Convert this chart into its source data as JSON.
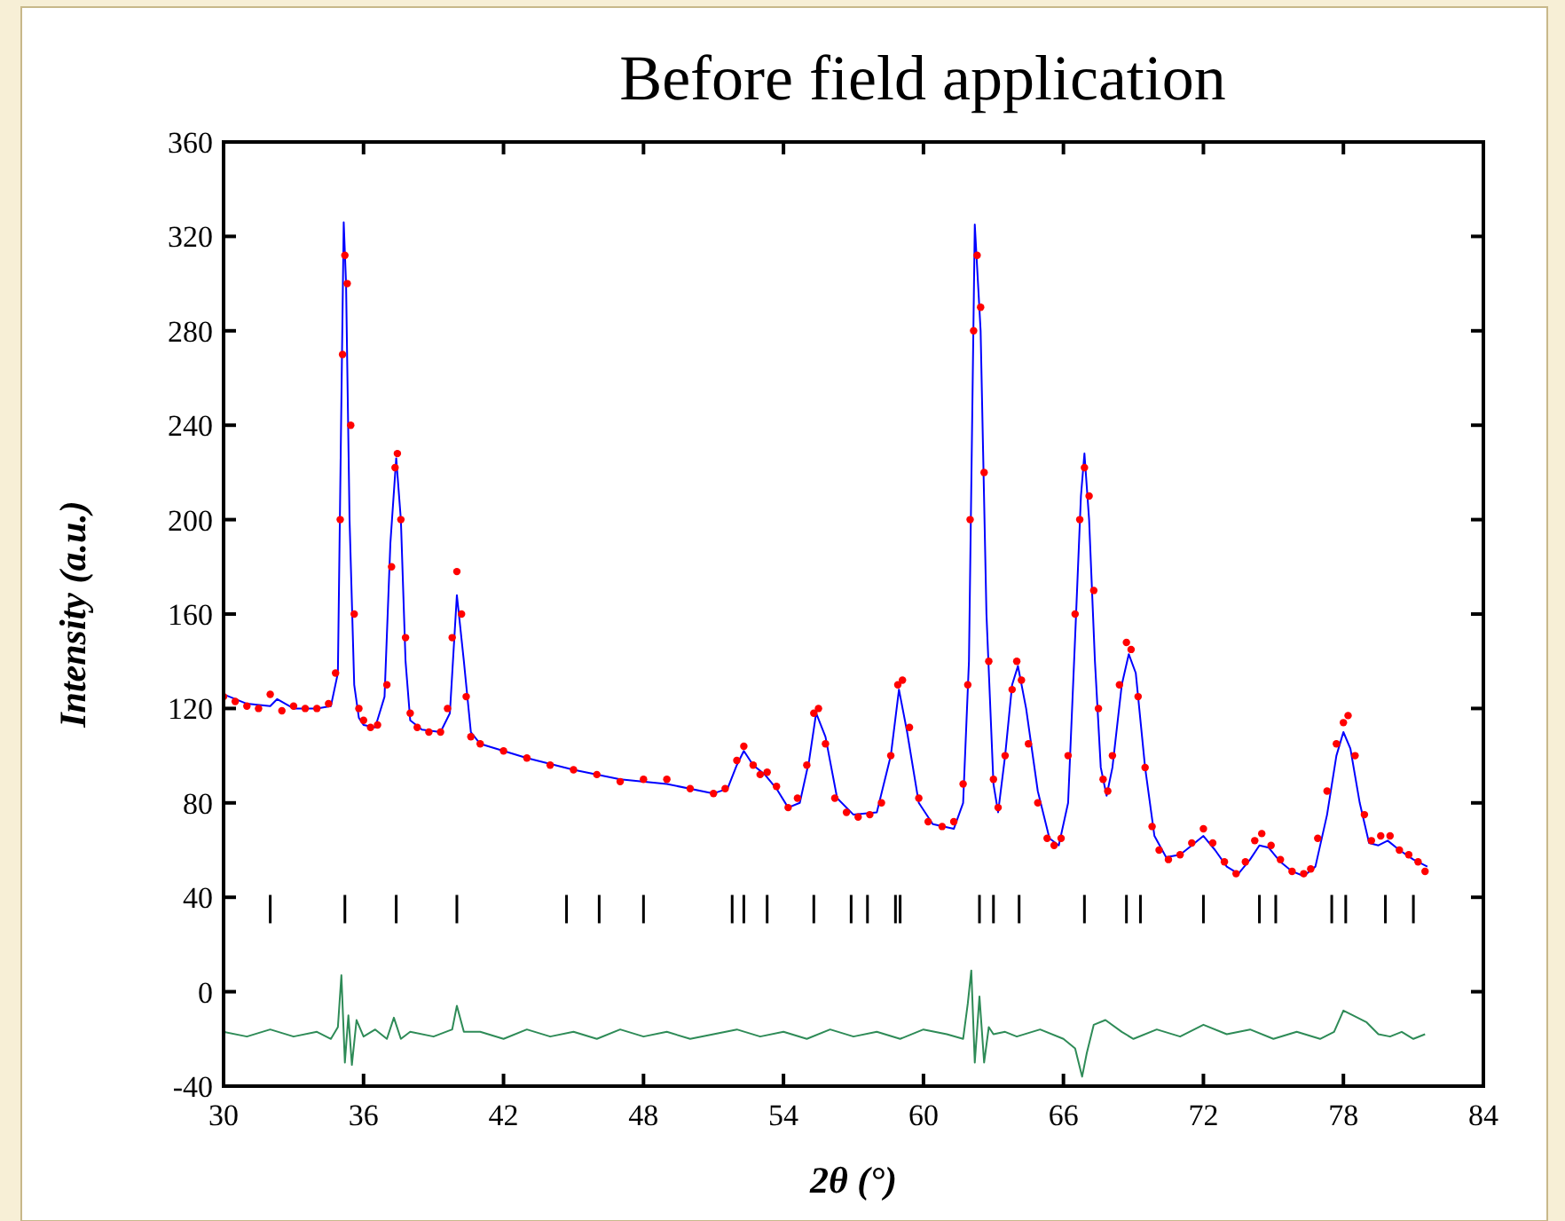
{
  "chart_data": {
    "type": "scatter",
    "title": "Before field application",
    "xlabel": "2θ (°)",
    "ylabel": "Intensity (a.u.)",
    "xlim": [
      30,
      84
    ],
    "xticks": [
      30,
      36,
      42,
      48,
      54,
      60,
      66,
      72,
      78,
      84
    ],
    "ylim": [
      -40,
      360
    ],
    "yticks": [
      -40,
      0,
      40,
      80,
      120,
      160,
      200,
      240,
      280,
      320,
      360
    ],
    "grid": false,
    "series": [
      {
        "type": "line",
        "color": "#0000ff",
        "marker": "none",
        "x": [
          30.0,
          31.0,
          32.0,
          32.3,
          33.0,
          34.0,
          34.6,
          34.9,
          35.05,
          35.15,
          35.25,
          35.4,
          35.6,
          35.8,
          36.0,
          36.5,
          36.9,
          37.15,
          37.4,
          37.6,
          37.8,
          38.0,
          38.5,
          39.3,
          39.7,
          40.0,
          40.3,
          40.6,
          41.0,
          43.0,
          45.0,
          47.0,
          49.0,
          51.0,
          51.6,
          52.0,
          52.3,
          52.7,
          53.2,
          53.7,
          54.2,
          54.7,
          55.1,
          55.4,
          55.8,
          56.3,
          57.0,
          58.0,
          58.6,
          58.95,
          59.3,
          59.8,
          60.4,
          61.3,
          61.7,
          61.95,
          62.2,
          62.45,
          62.7,
          63.0,
          63.2,
          63.5,
          63.8,
          64.05,
          64.4,
          64.9,
          65.4,
          65.8,
          66.2,
          66.5,
          66.75,
          66.9,
          67.1,
          67.35,
          67.6,
          67.85,
          68.1,
          68.5,
          68.8,
          69.1,
          69.5,
          69.9,
          70.4,
          71.0,
          71.5,
          72.0,
          72.5,
          73.0,
          73.5,
          74.0,
          74.4,
          74.8,
          75.3,
          75.8,
          76.3,
          76.8,
          77.3,
          77.7,
          78.0,
          78.3,
          78.7,
          79.1,
          79.5,
          79.9,
          80.4,
          81.0,
          81.6
        ],
        "values": [
          126,
          122,
          121,
          124,
          120,
          120,
          121,
          135,
          250,
          326,
          300,
          200,
          130,
          116,
          113,
          112,
          125,
          190,
          226,
          200,
          140,
          115,
          111,
          110,
          118,
          168,
          140,
          110,
          105,
          99,
          94,
          90,
          88,
          84,
          86,
          96,
          102,
          96,
          92,
          86,
          78,
          80,
          98,
          118,
          108,
          82,
          75,
          76,
          100,
          128,
          110,
          80,
          71,
          69,
          80,
          140,
          325,
          280,
          160,
          88,
          76,
          100,
          130,
          138,
          120,
          85,
          65,
          62,
          80,
          150,
          210,
          228,
          200,
          140,
          95,
          83,
          95,
          130,
          143,
          135,
          95,
          66,
          57,
          58,
          62,
          66,
          60,
          53,
          50,
          56,
          62,
          61,
          55,
          51,
          49,
          53,
          75,
          100,
          110,
          103,
          80,
          63,
          62,
          64,
          60,
          56,
          53
        ]
      },
      {
        "color": "#ff0000",
        "marker": "circle",
        "x": [
          30.0,
          30.5,
          31.0,
          31.5,
          32.0,
          32.5,
          33.0,
          33.5,
          34.0,
          34.5,
          34.8,
          35.0,
          35.1,
          35.2,
          35.3,
          35.45,
          35.6,
          35.8,
          36.0,
          36.3,
          36.6,
          37.0,
          37.2,
          37.35,
          37.45,
          37.6,
          37.8,
          38.0,
          38.3,
          38.8,
          39.3,
          39.6,
          39.8,
          40.0,
          40.2,
          40.4,
          40.6,
          41.0,
          42.0,
          43.0,
          44.0,
          45.0,
          46.0,
          47.0,
          48.0,
          49.0,
          50.0,
          51.0,
          51.5,
          52.0,
          52.3,
          52.7,
          53.0,
          53.3,
          53.7,
          54.2,
          54.6,
          55.0,
          55.3,
          55.5,
          55.8,
          56.2,
          56.7,
          57.2,
          57.7,
          58.2,
          58.6,
          58.9,
          59.1,
          59.4,
          59.8,
          60.2,
          60.8,
          61.3,
          61.7,
          61.9,
          62.0,
          62.15,
          62.3,
          62.45,
          62.6,
          62.8,
          63.0,
          63.2,
          63.5,
          63.8,
          64.0,
          64.2,
          64.5,
          64.9,
          65.3,
          65.6,
          65.9,
          66.2,
          66.5,
          66.7,
          66.9,
          67.1,
          67.3,
          67.5,
          67.7,
          67.9,
          68.1,
          68.4,
          68.7,
          68.9,
          69.2,
          69.5,
          69.8,
          70.1,
          70.5,
          71.0,
          71.5,
          72.0,
          72.4,
          72.9,
          73.4,
          73.8,
          74.2,
          74.5,
          74.9,
          75.3,
          75.8,
          76.3,
          76.6,
          76.9,
          77.3,
          77.7,
          78.0,
          78.2,
          78.5,
          78.9,
          79.2,
          79.6,
          80.0,
          80.4,
          80.8,
          81.2,
          81.5
        ],
        "values": [
          125,
          123,
          121,
          120,
          126,
          119,
          121,
          120,
          120,
          122,
          135,
          200,
          270,
          312,
          300,
          240,
          160,
          120,
          115,
          112,
          113,
          130,
          180,
          222,
          228,
          200,
          150,
          118,
          112,
          110,
          110,
          120,
          150,
          178,
          160,
          125,
          108,
          105,
          102,
          99,
          96,
          94,
          92,
          89,
          90,
          90,
          86,
          84,
          86,
          98,
          104,
          96,
          92,
          93,
          87,
          78,
          82,
          96,
          118,
          120,
          105,
          82,
          76,
          74,
          75,
          80,
          100,
          130,
          132,
          112,
          82,
          72,
          70,
          72,
          88,
          130,
          200,
          280,
          312,
          290,
          220,
          140,
          90,
          78,
          100,
          128,
          140,
          132,
          105,
          80,
          65,
          62,
          65,
          100,
          160,
          200,
          222,
          210,
          170,
          120,
          90,
          85,
          100,
          130,
          148,
          145,
          125,
          95,
          70,
          60,
          56,
          58,
          63,
          69,
          63,
          55,
          50,
          55,
          64,
          67,
          62,
          56,
          51,
          50,
          52,
          65,
          85,
          105,
          114,
          117,
          100,
          75,
          64,
          66,
          66,
          60,
          58,
          55,
          51
        ]
      },
      {
        "type": "line",
        "color": "#2e8b57",
        "marker": "none",
        "x": [
          30.0,
          31.0,
          32.0,
          33.0,
          34.0,
          34.6,
          34.9,
          35.05,
          35.2,
          35.35,
          35.5,
          35.7,
          36.0,
          36.5,
          37.0,
          37.3,
          37.6,
          38.0,
          39.0,
          39.8,
          40.0,
          40.3,
          41.0,
          42.0,
          43.0,
          44.0,
          45.0,
          46.0,
          47.0,
          48.0,
          49.0,
          50.0,
          51.0,
          52.0,
          53.0,
          54.0,
          55.0,
          56.0,
          57.0,
          58.0,
          59.0,
          60.0,
          61.0,
          61.7,
          61.9,
          62.05,
          62.2,
          62.4,
          62.6,
          62.8,
          63.0,
          63.5,
          64.0,
          65.0,
          66.0,
          66.5,
          66.8,
          67.0,
          67.3,
          67.8,
          68.5,
          69.0,
          70.0,
          71.0,
          72.0,
          73.0,
          74.0,
          75.0,
          76.0,
          77.0,
          77.6,
          78.0,
          78.4,
          79.0,
          79.5,
          80.0,
          80.5,
          81.0,
          81.5
        ],
        "values": [
          -17,
          -19,
          -16,
          -19,
          -17,
          -20,
          -15,
          7,
          -30,
          -10,
          -31,
          -12,
          -19,
          -16,
          -20,
          -11,
          -20,
          -17,
          -19,
          -16,
          -6,
          -17,
          -17,
          -20,
          -16,
          -19,
          -17,
          -20,
          -16,
          -19,
          -17,
          -20,
          -18,
          -16,
          -19,
          -17,
          -20,
          -16,
          -19,
          -17,
          -20,
          -16,
          -18,
          -20,
          -5,
          9,
          -30,
          -2,
          -30,
          -15,
          -18,
          -17,
          -19,
          -16,
          -20,
          -24,
          -36,
          -26,
          -14,
          -12,
          -17,
          -20,
          -16,
          -19,
          -14,
          -18,
          -16,
          -20,
          -17,
          -20,
          -17,
          -8,
          -10,
          -13,
          -18,
          -19,
          -17,
          -20,
          -18
        ]
      },
      {
        "type": "bar",
        "color": "#000000",
        "x": [
          32.0,
          35.2,
          37.4,
          40.0,
          44.7,
          46.1,
          48.0,
          51.8,
          52.3,
          53.3,
          55.3,
          56.9,
          57.6,
          58.8,
          59.0,
          62.4,
          63.0,
          64.1,
          66.9,
          68.7,
          69.3,
          72.0,
          74.4,
          75.1,
          77.5,
          78.1,
          79.8,
          81.0
        ],
        "base": [
          29,
          29,
          29,
          29,
          29,
          29,
          29,
          29,
          29,
          29,
          29,
          29,
          29,
          29,
          29,
          29,
          29,
          29,
          29,
          29,
          29,
          29,
          29,
          29,
          29,
          29,
          29,
          29
        ],
        "values": [
          12,
          12,
          12,
          12,
          12,
          12,
          12,
          12,
          12,
          12,
          12,
          12,
          12,
          12,
          12,
          12,
          12,
          12,
          12,
          12,
          12,
          12,
          12,
          12,
          12,
          12,
          12,
          12
        ]
      }
    ]
  }
}
